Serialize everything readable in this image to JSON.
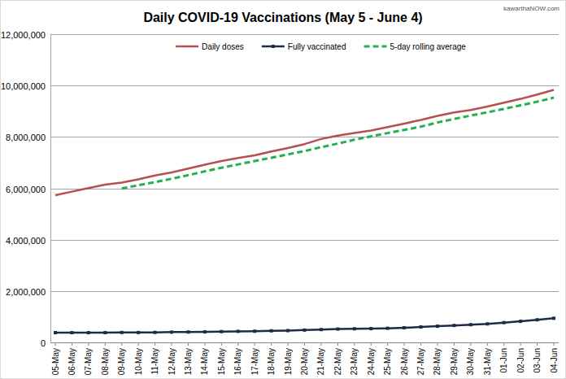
{
  "chart_data": {
    "type": "line",
    "title": "Daily COVID-19 Vaccinations (May 5 - June 4)",
    "annotations": [
      "kawarthaNOW.com"
    ],
    "categories": [
      "05-May",
      "06-May",
      "07-May",
      "08-May",
      "09-May",
      "10-May",
      "11-May",
      "12-May",
      "13-May",
      "14-May",
      "15-May",
      "16-May",
      "17-May",
      "18-May",
      "19-May",
      "20-May",
      "21-May",
      "22-May",
      "23-May",
      "24-May",
      "25-May",
      "26-May",
      "27-May",
      "28-May",
      "29-May",
      "30-May",
      "31-May",
      "01-Jun",
      "02-Jun",
      "03-Jun",
      "04-Jun"
    ],
    "series": [
      {
        "name": "Daily doses",
        "color": "#b5504f",
        "line_style": "solid",
        "values": [
          5730000,
          5870000,
          6010000,
          6140000,
          6220000,
          6350000,
          6500000,
          6620000,
          6770000,
          6920000,
          7060000,
          7180000,
          7280000,
          7430000,
          7570000,
          7720000,
          7920000,
          8050000,
          8150000,
          8250000,
          8380000,
          8520000,
          8660000,
          8820000,
          8950000,
          9050000,
          9180000,
          9330000,
          9480000,
          9650000,
          9830000
        ]
      },
      {
        "name": "Fully vaccinated",
        "color": "#1c2b47",
        "line_style": "solid",
        "marker": "square",
        "values": [
          380000,
          380000,
          380000,
          380000,
          385000,
          385000,
          390000,
          400000,
          405000,
          410000,
          420000,
          430000,
          435000,
          450000,
          460000,
          480000,
          500000,
          520000,
          530000,
          535000,
          550000,
          570000,
          600000,
          630000,
          660000,
          690000,
          720000,
          770000,
          820000,
          880000,
          940000
        ]
      },
      {
        "name": "5-day rolling average",
        "color": "#22b14c",
        "line_style": "dashed",
        "values": [
          null,
          null,
          null,
          null,
          5990000,
          6120000,
          6240000,
          6370000,
          6510000,
          6660000,
          6800000,
          6930000,
          7060000,
          7190000,
          7320000,
          7450000,
          7600000,
          7740000,
          7890000,
          8020000,
          8150000,
          8270000,
          8400000,
          8560000,
          8700000,
          8830000,
          8960000,
          9090000,
          9230000,
          9370000,
          9530000
        ]
      }
    ],
    "ylim": [
      0,
      12000000
    ],
    "yticks": [
      0,
      {
        "value": 2000000,
        "label": "2,000,000"
      },
      {
        "value": 4000000,
        "label": "4,000,000"
      },
      {
        "value": 6000000,
        "label": "6,000,000"
      },
      {
        "value": 8000000,
        "label": "8,000,000"
      },
      {
        "value": 10000000,
        "label": "10,000,000"
      },
      {
        "value": 12000000,
        "label": "12,000,000"
      }
    ],
    "grid": true,
    "legend": "top"
  }
}
